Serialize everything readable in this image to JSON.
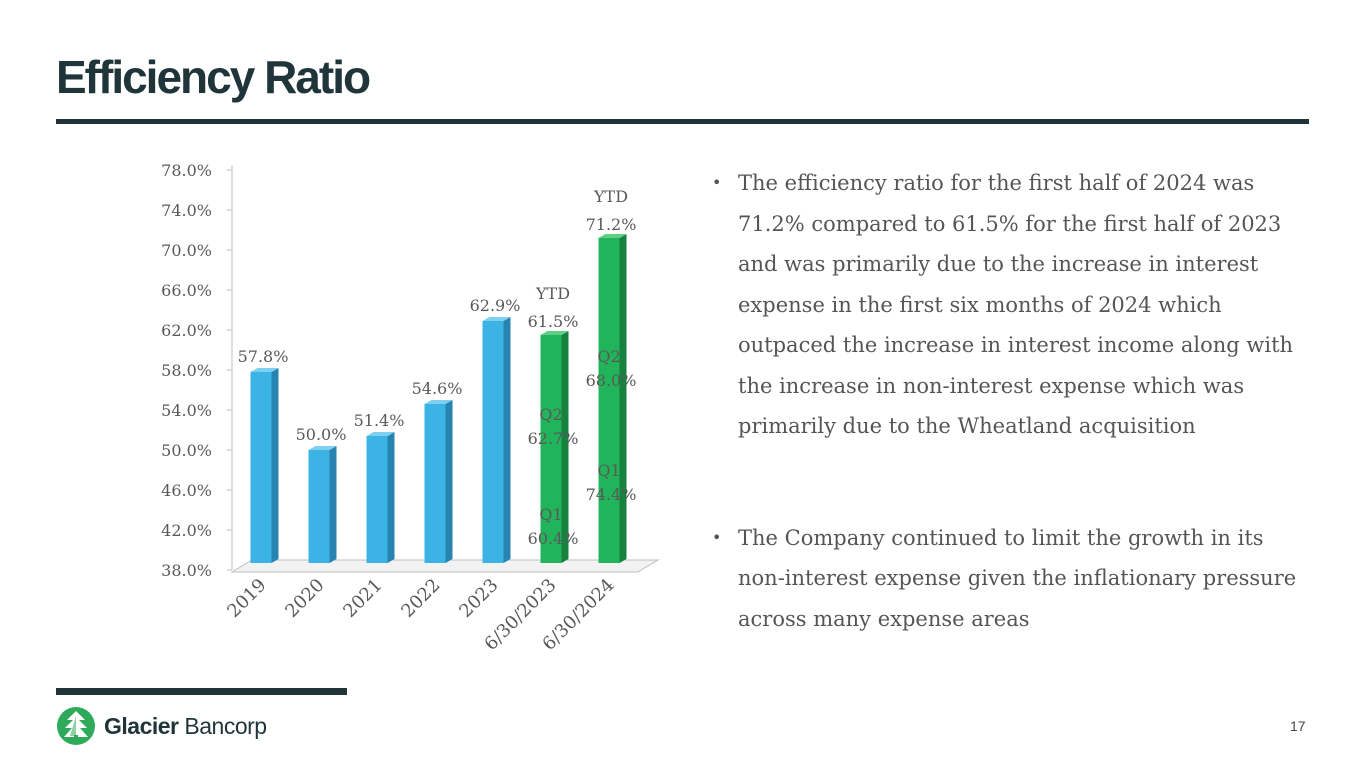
{
  "slide": {
    "title": "Efficiency Ratio",
    "page_number": "17",
    "bullets": [
      "The efficiency ratio for the first half of 2024 was 71.2% compared to 61.5% for the first half of 2023 and was primarily due to the increase in interest expense in the first six months of 2024 which outpaced the increase in interest income along with the increase in non-interest expense which was primarily due to the Wheatland acquisition",
      "The Company continued to limit the growth in its non-interest expense given the inflationary pressure across many expense areas"
    ],
    "logo": {
      "name_bold": "Glacier",
      "name_regular": "Bancorp",
      "icon": "glacier-tree-icon"
    }
  },
  "colors": {
    "brand_dark": "#1f3539",
    "bar_blue": "#3bb4e5",
    "bar_green": "#22b45a",
    "brand_green": "#2eaa5a"
  },
  "chart_data": {
    "type": "bar",
    "title": "",
    "xlabel": "",
    "ylabel": "",
    "ylim": [
      38,
      78
    ],
    "yticks": [
      "38.0%",
      "42.0%",
      "46.0%",
      "50.0%",
      "54.0%",
      "58.0%",
      "62.0%",
      "66.0%",
      "70.0%",
      "74.0%",
      "78.0%"
    ],
    "categories": [
      "2019",
      "2020",
      "2021",
      "2022",
      "2023",
      "6/30/2023",
      "6/30/2024"
    ],
    "values": [
      57.8,
      50.0,
      51.4,
      54.6,
      62.9,
      61.5,
      71.2
    ],
    "value_labels": [
      "57.8%",
      "50.0%",
      "51.4%",
      "54.6%",
      "62.9%",
      "61.5%",
      "71.2%"
    ],
    "bar_colors": [
      "blue",
      "blue",
      "blue",
      "blue",
      "blue",
      "green",
      "green"
    ],
    "ytd_label": "YTD",
    "quarter_annotations": [
      {
        "category_index": 5,
        "quarter": "Q1",
        "value": 60.4,
        "label": "60.4%"
      },
      {
        "category_index": 5,
        "quarter": "Q2",
        "value": 62.7,
        "label": "62.7%"
      },
      {
        "category_index": 6,
        "quarter": "Q1",
        "value": 74.4,
        "label": "74.4%"
      },
      {
        "category_index": 6,
        "quarter": "Q2",
        "value": 68.0,
        "label": "68.0%"
      }
    ],
    "grid": false,
    "legend": "none"
  }
}
